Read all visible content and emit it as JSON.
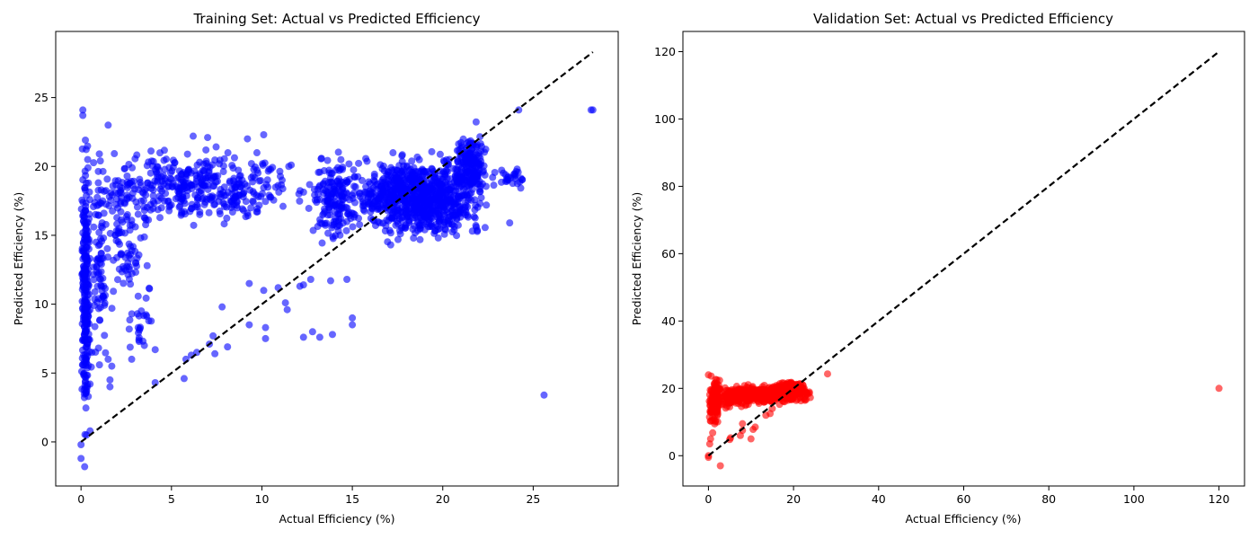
{
  "chart_data": [
    {
      "type": "scatter",
      "title": "Training Set: Actual vs Predicted Efficiency",
      "xlabel": "Actual Efficiency (%)",
      "ylabel": "Predicted Efficiency (%)",
      "xlim": [
        -1.4,
        29.7
      ],
      "ylim": [
        -3.2,
        29.8
      ],
      "xticks": [
        0,
        5,
        10,
        15,
        20,
        25
      ],
      "yticks": [
        0,
        5,
        10,
        15,
        20,
        25
      ],
      "grid": false,
      "marker_color": "#0000ff",
      "marker_alpha": 0.6,
      "reference_line": {
        "style": "dashed",
        "color": "#000000",
        "from": [
          0,
          0
        ],
        "to": [
          28.3,
          28.3
        ]
      },
      "point_clusters": [
        {
          "x_range": [
            15,
            22.5
          ],
          "y_range": [
            14,
            21.5
          ],
          "count": 900
        },
        {
          "x_range": [
            20.5,
            22.5
          ],
          "y_range": [
            17,
            23.5
          ],
          "count": 160
        },
        {
          "x_range": [
            22.5,
            24.9
          ],
          "y_range": [
            18.3,
            20
          ],
          "count": 30
        },
        {
          "x_range": [
            12.5,
            15.5
          ],
          "y_range": [
            14,
            21.5
          ],
          "count": 180
        },
        {
          "x_range": [
            0,
            12.5
          ],
          "y_range": [
            15.2,
            21.8
          ],
          "count": 420
        },
        {
          "x_range": [
            0,
            0.5
          ],
          "y_range": [
            -1.8,
            24
          ],
          "count": 260
        },
        {
          "x_range": [
            0.5,
            1.5
          ],
          "y_range": [
            3.5,
            22.5
          ],
          "count": 80
        },
        {
          "x_range": [
            1,
            4
          ],
          "y_range": [
            8,
            21
          ],
          "count": 90
        },
        {
          "x_range": [
            2.5,
            4
          ],
          "y_range": [
            6.5,
            10
          ],
          "count": 20
        }
      ],
      "points": [
        {
          "x": 28.3,
          "y": 24.1
        },
        {
          "x": 28.2,
          "y": 24.1
        },
        {
          "x": 24.2,
          "y": 24.1
        },
        {
          "x": 25.6,
          "y": 3.4
        },
        {
          "x": 23.7,
          "y": 15.9
        },
        {
          "x": 0.1,
          "y": 24.1
        },
        {
          "x": 0.1,
          "y": 23.7
        },
        {
          "x": 1.5,
          "y": 23
        },
        {
          "x": 9.2,
          "y": 22
        },
        {
          "x": 10.1,
          "y": 22.3
        },
        {
          "x": 6.2,
          "y": 22.2
        },
        {
          "x": 7,
          "y": 22.1
        },
        {
          "x": 7.8,
          "y": 9.8
        },
        {
          "x": 5.8,
          "y": 6
        },
        {
          "x": 6.1,
          "y": 6.3
        },
        {
          "x": 6.4,
          "y": 6.5
        },
        {
          "x": 7.1,
          "y": 7.1
        },
        {
          "x": 7.3,
          "y": 7.7
        },
        {
          "x": 8.1,
          "y": 6.9
        },
        {
          "x": 7.4,
          "y": 6.4
        },
        {
          "x": 5.7,
          "y": 4.6
        },
        {
          "x": 9.3,
          "y": 8.5
        },
        {
          "x": 10.2,
          "y": 8.3
        },
        {
          "x": 10.2,
          "y": 7.5
        },
        {
          "x": 12.3,
          "y": 7.6
        },
        {
          "x": 12.8,
          "y": 8
        },
        {
          "x": 13.2,
          "y": 7.6
        },
        {
          "x": 13.9,
          "y": 7.8
        },
        {
          "x": 15,
          "y": 9
        },
        {
          "x": 15,
          "y": 8.5
        },
        {
          "x": 14.7,
          "y": 11.8
        },
        {
          "x": 11.3,
          "y": 10.1
        },
        {
          "x": 11.4,
          "y": 9.6
        },
        {
          "x": 12.3,
          "y": 11.4
        },
        {
          "x": 12.1,
          "y": 11.3
        },
        {
          "x": 12.7,
          "y": 11.8
        },
        {
          "x": 13.8,
          "y": 11.7
        },
        {
          "x": 9.3,
          "y": 11.5
        },
        {
          "x": 10.1,
          "y": 11
        },
        {
          "x": 10.9,
          "y": 11.2
        },
        {
          "x": 4.1,
          "y": 4.3
        },
        {
          "x": 4.1,
          "y": 6.7
        },
        {
          "x": 2.8,
          "y": 6
        },
        {
          "x": 3.2,
          "y": 7.4
        },
        {
          "x": 3.5,
          "y": 7
        },
        {
          "x": 1.6,
          "y": 4
        },
        {
          "x": 1.7,
          "y": 5.5
        },
        {
          "x": 1.5,
          "y": 6
        },
        {
          "x": 1.6,
          "y": 4.5
        },
        {
          "x": 0.4,
          "y": 3.3
        },
        {
          "x": 0.5,
          "y": 4.2
        },
        {
          "x": 0.6,
          "y": 6.5
        },
        {
          "x": 0.2,
          "y": -1.8
        },
        {
          "x": 0,
          "y": -1.2
        },
        {
          "x": 0.3,
          "y": 0.5
        },
        {
          "x": 0.5,
          "y": 0.8
        },
        {
          "x": 0,
          "y": -0.2
        }
      ]
    },
    {
      "type": "scatter",
      "title": "Validation Set: Actual vs Predicted Efficiency",
      "xlabel": "Actual Efficiency (%)",
      "ylabel": "Predicted Efficiency (%)",
      "xlim": [
        -6,
        126
      ],
      "ylim": [
        -9,
        126
      ],
      "xticks": [
        0,
        20,
        40,
        60,
        80,
        100,
        120
      ],
      "yticks": [
        0,
        20,
        40,
        60,
        80,
        100,
        120
      ],
      "grid": false,
      "marker_color": "#ff0000",
      "marker_alpha": 0.6,
      "reference_line": {
        "style": "dashed",
        "color": "#000000",
        "from": [
          0,
          0
        ],
        "to": [
          120,
          120
        ]
      },
      "point_clusters": [
        {
          "x_range": [
            3,
            25
          ],
          "y_range": [
            15,
            21.5
          ],
          "count": 420
        },
        {
          "x_range": [
            15,
            23
          ],
          "y_range": [
            17,
            23
          ],
          "count": 120
        },
        {
          "x_range": [
            0,
            3
          ],
          "y_range": [
            8,
            24
          ],
          "count": 140
        },
        {
          "x_range": [
            0,
            12
          ],
          "y_range": [
            13,
            21
          ],
          "count": 120
        }
      ],
      "points": [
        {
          "x": 120,
          "y": 20
        },
        {
          "x": 28,
          "y": 24.3
        },
        {
          "x": 2.8,
          "y": -3
        },
        {
          "x": 0,
          "y": 0
        },
        {
          "x": 0,
          "y": -0.5
        },
        {
          "x": 0.3,
          "y": 3.5
        },
        {
          "x": 0.5,
          "y": 5
        },
        {
          "x": 1,
          "y": 6.8
        },
        {
          "x": 5,
          "y": 4.8
        },
        {
          "x": 5.2,
          "y": 5.3
        },
        {
          "x": 7.5,
          "y": 6
        },
        {
          "x": 8,
          "y": 7.5
        },
        {
          "x": 10,
          "y": 5
        },
        {
          "x": 10.5,
          "y": 7.8
        },
        {
          "x": 11,
          "y": 8.5
        },
        {
          "x": 8,
          "y": 9.5
        },
        {
          "x": 13.5,
          "y": 12
        },
        {
          "x": 14.5,
          "y": 12.5
        },
        {
          "x": 15,
          "y": 14
        },
        {
          "x": 0,
          "y": 24
        },
        {
          "x": 2,
          "y": 22.5
        }
      ]
    }
  ]
}
